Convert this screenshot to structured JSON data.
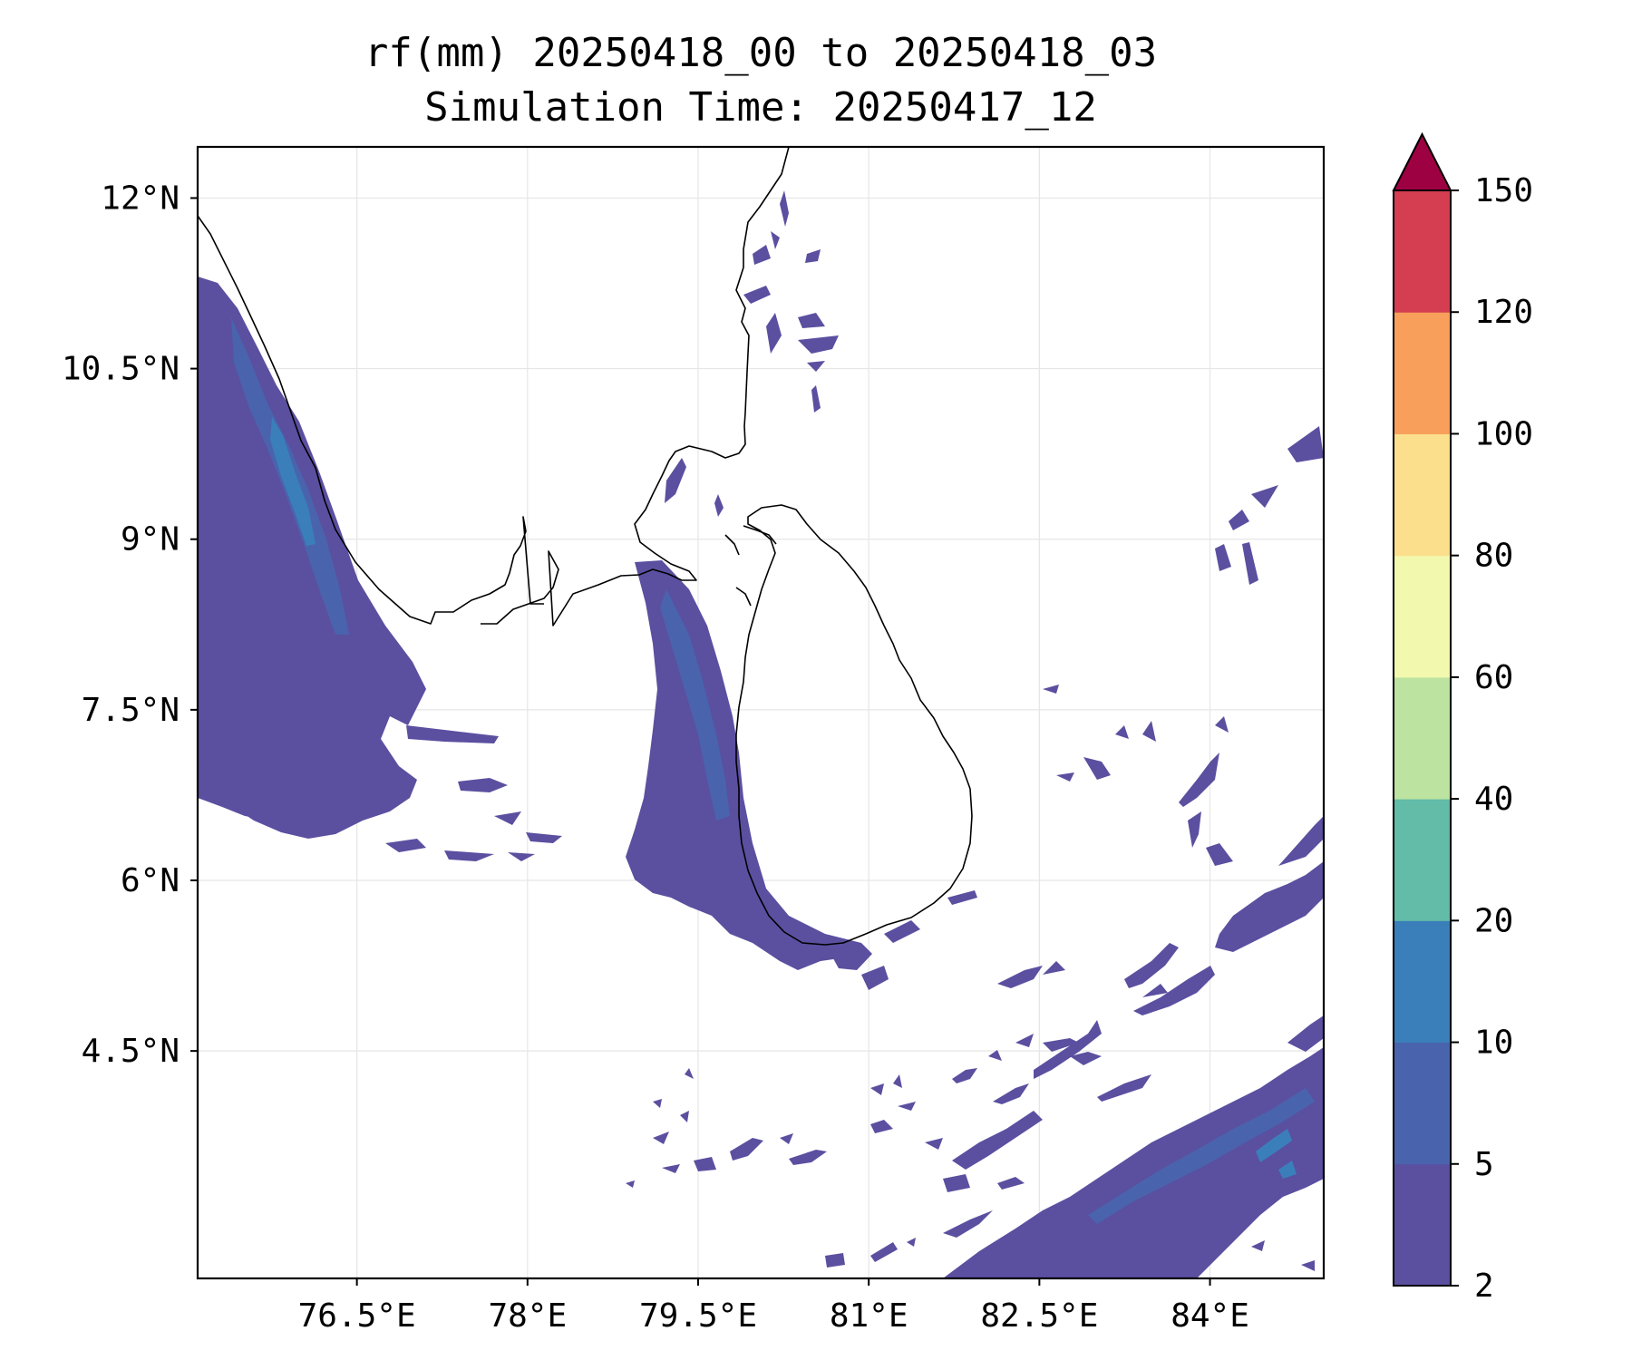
{
  "title": {
    "line1": "rf(mm) 20250418_00 to 20250418_03",
    "line2": "Simulation Time: 20250417_12"
  },
  "map": {
    "lon_range": [
      75.1,
      85.0
    ],
    "lat_range": [
      2.5,
      12.45
    ],
    "x_ticks": [
      {
        "value": 76.5,
        "label": "76.5°E"
      },
      {
        "value": 78.0,
        "label": "78°E"
      },
      {
        "value": 79.5,
        "label": "79.5°E"
      },
      {
        "value": 81.0,
        "label": "81°E"
      },
      {
        "value": 82.5,
        "label": "82.5°E"
      },
      {
        "value": 84.0,
        "label": "84°E"
      }
    ],
    "y_ticks": [
      {
        "value": 12.0,
        "label": "12°N"
      },
      {
        "value": 10.5,
        "label": "10.5°N"
      },
      {
        "value": 9.0,
        "label": "9°N"
      },
      {
        "value": 7.5,
        "label": "7.5°N"
      },
      {
        "value": 6.0,
        "label": "6°N"
      },
      {
        "value": 4.5,
        "label": "4.5°N"
      }
    ],
    "grid": true
  },
  "colorbar": {
    "levels": [
      "2",
      "5",
      "10",
      "20",
      "40",
      "60",
      "80",
      "100",
      "120",
      "150"
    ],
    "colors": [
      "#5b4fa0",
      "#4a63ad",
      "#3a7fba",
      "#62bca8",
      "#bce3a0",
      "#f2f9ae",
      "#fbdf8c",
      "#f89f5b",
      "#d43e50",
      "#9e0142"
    ],
    "extend": "max"
  },
  "rain_color_light": "#5b4fa0",
  "rain_color_mid": "#4a63ad",
  "rain_color_heavy": "#3a7fba"
}
